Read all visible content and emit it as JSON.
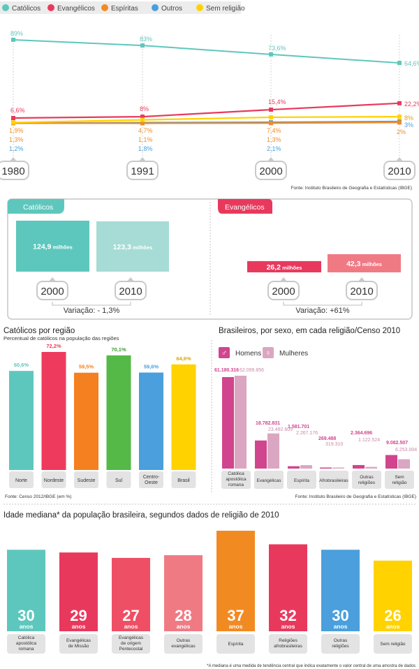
{
  "colors": {
    "catolicos": "#5ec7bd",
    "evangelicos": "#e8395d",
    "espiritas": "#f28a22",
    "outros": "#4a9fdc",
    "sem_religiao": "#ffd200",
    "catolicos_light": "#a6dcd5",
    "evangelicos_light": "#f07a84",
    "homens": "#d0458e",
    "mulheres": "#dba6c1",
    "nordeste": "#ee3a5c",
    "sudeste": "#f4801f",
    "sul": "#54b947",
    "centro_oeste": "#4a9fdc",
    "brasil": "#ffd200",
    "grey_label": "#e3e3e3"
  },
  "legend": [
    {
      "label": "Católicos",
      "color": "#5ec7bd"
    },
    {
      "label": "Evangélicos",
      "color": "#e8395d"
    },
    {
      "label": "Espíritas",
      "color": "#f28a22"
    },
    {
      "label": "Outros",
      "color": "#4a9fdc"
    },
    {
      "label": "Sem religião",
      "color": "#ffd200"
    }
  ],
  "chart_data": [
    {
      "type": "line",
      "x": [
        "1980",
        "1991",
        "2000",
        "2010"
      ],
      "series": [
        {
          "name": "Católicos",
          "values": [
            89,
            83,
            73.6,
            64.6
          ],
          "labels": [
            "89%",
            "83%",
            "73,6%",
            "64,6%"
          ]
        },
        {
          "name": "Evangélicos",
          "values": [
            6.6,
            8,
            15.4,
            22.2
          ],
          "labels": [
            "6,6%",
            "8%",
            "15,4%",
            "22,2%"
          ]
        },
        {
          "name": "Espíritas",
          "values": [
            1.3,
            1.1,
            1.3,
            2
          ],
          "labels": [
            "1,3%",
            "1,1%",
            "1,3%",
            "2%"
          ]
        },
        {
          "name": "Outros",
          "values": [
            1.2,
            1.8,
            2.1,
            3
          ],
          "labels": [
            "1,2%",
            "1,8%",
            "2,1%",
            "3%"
          ]
        },
        {
          "name": "Sem religião",
          "values": [
            1.9,
            4.7,
            7.4,
            8
          ],
          "labels": [
            "1,9%",
            "4,7%",
            "7,4%",
            "8%"
          ]
        }
      ],
      "source": "Fonte: Instituto Brasileiro de Geografia e Estatísticas (IBGE)"
    },
    {
      "type": "bar",
      "title": "Católicos",
      "categories": [
        "2000",
        "2010"
      ],
      "values": [
        124.9,
        123.3
      ],
      "value_labels": [
        "124,9",
        "123,3"
      ],
      "unit": "milhões",
      "variation": "Variação: - 1,3%"
    },
    {
      "type": "bar",
      "title": "Evangélicos",
      "categories": [
        "2000",
        "2010"
      ],
      "values": [
        26.2,
        42.3
      ],
      "value_labels": [
        "26,2",
        "42,3"
      ],
      "unit": "milhões",
      "variation": "Variação: +61%"
    },
    {
      "type": "bar",
      "title": "Católicos por região",
      "subtitle": "Percentual de católicos na população das regiões",
      "categories": [
        "Norte",
        "Nordeste",
        "Sudeste",
        "Sul",
        "Centro-Oeste",
        "Brasil"
      ],
      "values": [
        60.6,
        72.2,
        59.5,
        70.1,
        59.6,
        64.6
      ],
      "value_labels": [
        "60,6%",
        "72,2%",
        "59,5%",
        "70,1%",
        "59,6%",
        "64,6%"
      ],
      "source": "Fonte: Censo 2012/IBGE (em %)"
    },
    {
      "type": "bar",
      "title": "Brasileiros, por sexo, em cada religião/Censo 2010",
      "categories": [
        "Católica apostólica romana",
        "Evangélicas",
        "Espírita",
        "Afrobrasileiras",
        "Outras religiões",
        "Sem religião"
      ],
      "series": [
        {
          "name": "Homens",
          "values": [
            61180316,
            18782831,
            1581701,
            269488,
            2364696,
            9082507
          ],
          "labels": [
            "61.180.316",
            "18.782.831",
            "1.581.701",
            "269.488",
            "2.364.696",
            "9.082.507"
          ]
        },
        {
          "name": "Mulheres",
          "values": [
            62099856,
            23492609,
            2267176,
            319310,
            1122524,
            6253004
          ],
          "labels": [
            "62.099.856",
            "23.492.609",
            "2.267.176",
            "319.310",
            "1.122.524",
            "6.253.004"
          ]
        }
      ],
      "source": "Fonte: Instituto Brasileiro de Geografia e Estatísticas (IBGE)"
    },
    {
      "type": "bar",
      "title": "Idade mediana* da população brasileira, segundos dados de religião de 2010",
      "categories": [
        "Católica apostólica romana",
        "Evangélicas de Missão",
        "Evangélicas de origem Pentecostal",
        "Outras evangélicas",
        "Espírita",
        "Religiões afrobrasileiras",
        "Outras religiões",
        "Sem religião"
      ],
      "values": [
        30,
        29,
        27,
        28,
        37,
        32,
        30,
        26
      ],
      "unit": "anos",
      "footnote": "*A mediana é uma medida de tendência central que indica exatamente o valor central de uma amostra de dados"
    }
  ]
}
